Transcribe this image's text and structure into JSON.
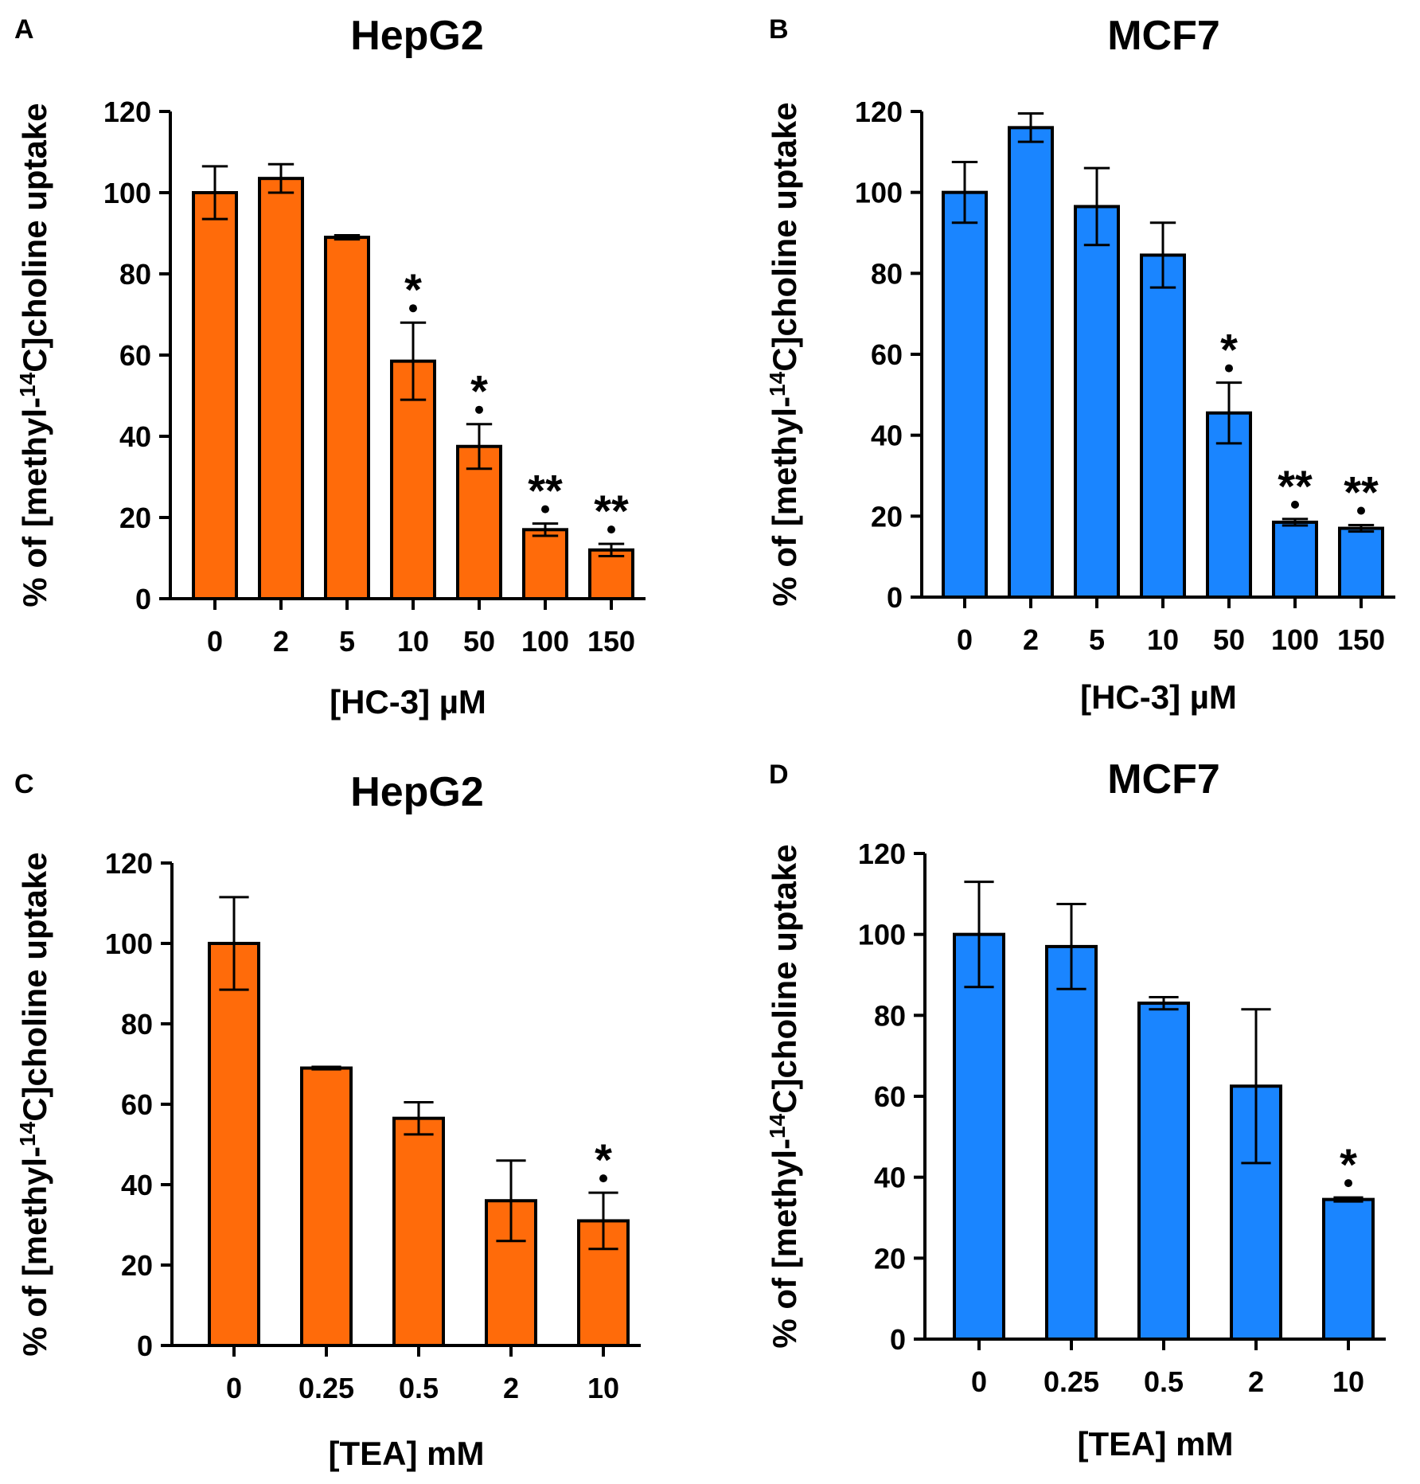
{
  "colors": {
    "hepg2": "#FF6B0A",
    "mcf7": "#1A85FF"
  },
  "chart_data": [
    {
      "panel": "A",
      "type": "bar",
      "title": "HepG2",
      "xlabel": "[HC-3] µM",
      "ylabel": "% of [methyl-14C]choline uptake",
      "ylabel_parts": {
        "before": "% of [methyl-",
        "sup": "14",
        "after": "C]choline uptake"
      },
      "categories": [
        "0",
        "2",
        "5",
        "10",
        "50",
        "100",
        "150"
      ],
      "values": [
        100,
        103.5,
        89,
        58.5,
        37.5,
        17,
        12
      ],
      "errors": [
        6.5,
        3.5,
        0.5,
        9.5,
        5.5,
        1.5,
        1.5
      ],
      "significance": [
        "",
        "",
        "",
        "*",
        "*",
        "**",
        "**"
      ],
      "ylim": [
        0,
        120
      ],
      "yticks": [
        0,
        20,
        40,
        60,
        80,
        100,
        120
      ],
      "color": "#FF6B0A"
    },
    {
      "panel": "B",
      "type": "bar",
      "title": "MCF7",
      "xlabel": "[HC-3] µM",
      "ylabel": "% of [methyl-14C]choline uptake",
      "ylabel_parts": {
        "before": "% of [methyl-",
        "sup": "14",
        "after": "C]choline uptake"
      },
      "categories": [
        "0",
        "2",
        "5",
        "10",
        "50",
        "100",
        "150"
      ],
      "values": [
        100,
        116,
        96.5,
        84.5,
        45.5,
        18.5,
        17
      ],
      "errors": [
        7.5,
        3.5,
        9.5,
        8,
        7.5,
        0.8,
        0.8
      ],
      "significance": [
        "",
        "",
        "",
        "",
        "*",
        "**",
        "**"
      ],
      "ylim": [
        0,
        120
      ],
      "yticks": [
        0,
        20,
        40,
        60,
        80,
        100,
        120
      ],
      "color": "#1A85FF"
    },
    {
      "panel": "C",
      "type": "bar",
      "title": "HepG2",
      "xlabel": "[TEA] mM",
      "ylabel": "% of [methyl-14C]choline uptake",
      "ylabel_parts": {
        "before": "% of [methyl-",
        "sup": "14",
        "after": "C]choline uptake"
      },
      "categories": [
        "0",
        "0.25",
        "0.5",
        "2",
        "10"
      ],
      "values": [
        100,
        69,
        56.5,
        36,
        31
      ],
      "errors": [
        11.5,
        0.3,
        4,
        10,
        7
      ],
      "significance": [
        "",
        "",
        "",
        "",
        "*"
      ],
      "ylim": [
        0,
        120
      ],
      "yticks": [
        0,
        20,
        40,
        60,
        80,
        100,
        120
      ],
      "color": "#FF6B0A"
    },
    {
      "panel": "D",
      "type": "bar",
      "title": "MCF7",
      "xlabel": "[TEA] mM",
      "ylabel": "% of [methyl-14C]choline uptake",
      "ylabel_parts": {
        "before": "% of [methyl-",
        "sup": "14",
        "after": "C]choline uptake"
      },
      "categories": [
        "0",
        "0.25",
        "0.5",
        "2",
        "10"
      ],
      "values": [
        100,
        97,
        83,
        62.5,
        34.5
      ],
      "errors": [
        13,
        10.5,
        1.5,
        19,
        0.5
      ],
      "significance": [
        "",
        "",
        "",
        "",
        "*"
      ],
      "ylim": [
        0,
        120
      ],
      "yticks": [
        0,
        20,
        40,
        60,
        80,
        100,
        120
      ],
      "color": "#1A85FF"
    }
  ]
}
